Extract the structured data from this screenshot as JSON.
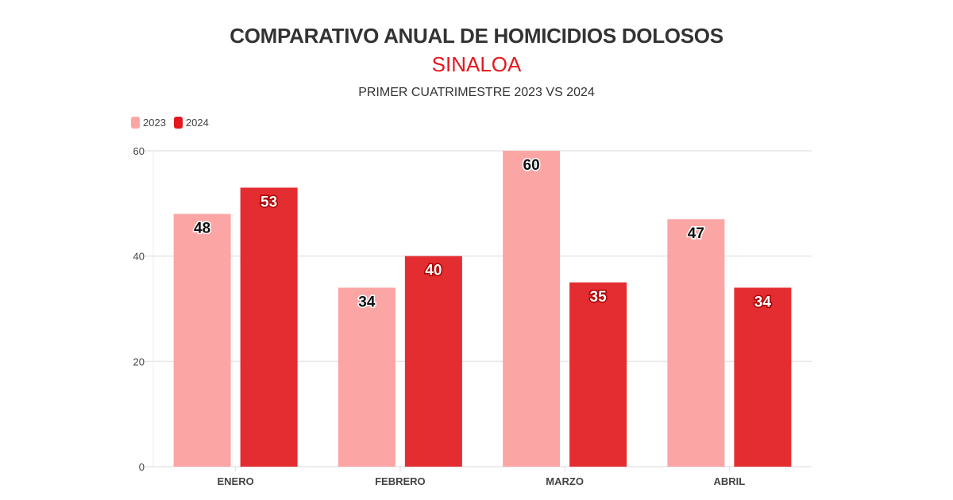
{
  "chart_data": {
    "type": "bar",
    "title": "COMPARATIVO ANUAL DE HOMICIDIOS DOLOSOS",
    "subtitle": "SINALOA",
    "subtitle2": "PRIMER CUATRIMESTRE 2023 VS 2024",
    "categories": [
      "ENERO",
      "FEBRERO",
      "MARZO",
      "ABRIL"
    ],
    "series": [
      {
        "name": "2023",
        "values": [
          48,
          34,
          60,
          47
        ],
        "color": "#fca5a5"
      },
      {
        "name": "2024",
        "values": [
          53,
          40,
          35,
          34
        ],
        "color": "#e32d30"
      }
    ],
    "ylim": [
      0,
      60
    ],
    "yticks": [
      0,
      20,
      40,
      60
    ],
    "grid": true,
    "legend": "top-left",
    "xlabel": "",
    "ylabel": ""
  }
}
